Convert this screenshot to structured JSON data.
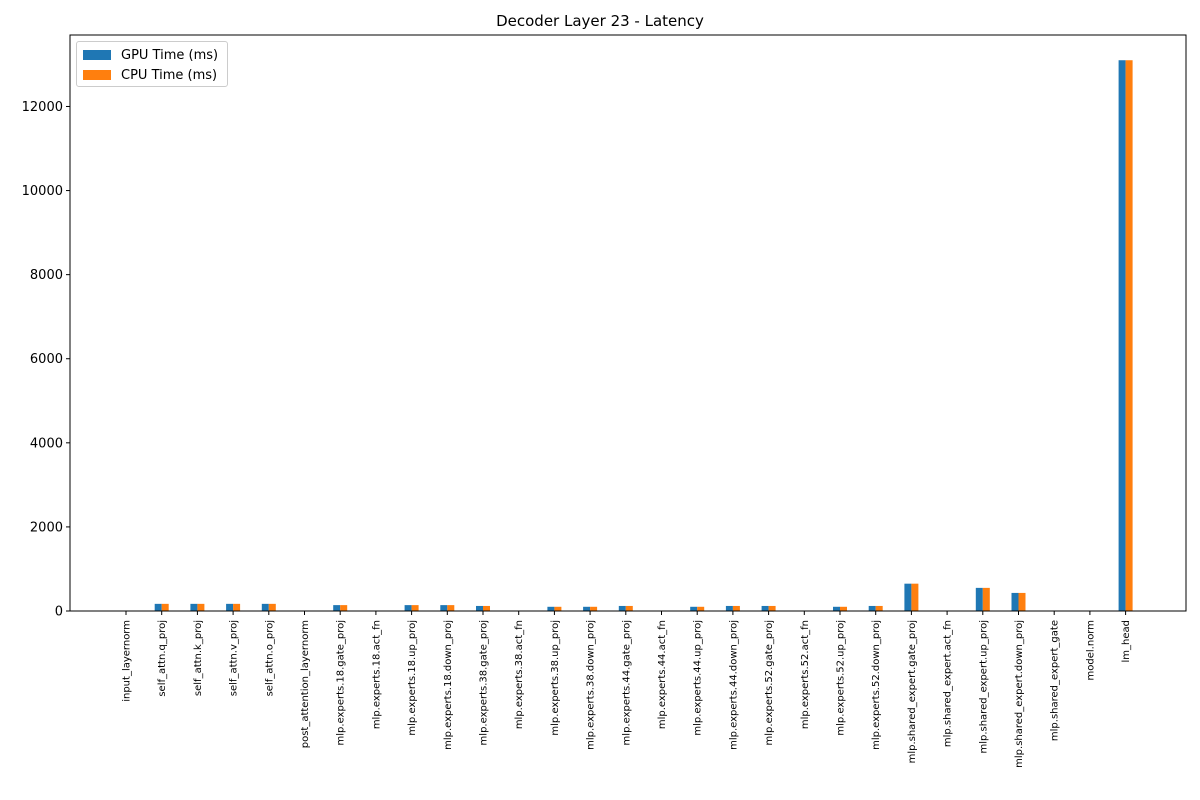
{
  "chart_data": {
    "type": "bar",
    "title": "Decoder Layer 23 - Latency",
    "xlabel": "",
    "ylabel": "",
    "ylim": [
      0,
      13700
    ],
    "yticks": [
      0,
      2000,
      4000,
      6000,
      8000,
      10000,
      12000
    ],
    "grid": false,
    "legend_position": "top-left",
    "categories": [
      "input_layernorm",
      "self_attn.q_proj",
      "self_attn.k_proj",
      "self_attn.v_proj",
      "self_attn.o_proj",
      "post_attention_layernorm",
      "mlp.experts.18.gate_proj",
      "mlp.experts.18.act_fn",
      "mlp.experts.18.up_proj",
      "mlp.experts.18.down_proj",
      "mlp.experts.38.gate_proj",
      "mlp.experts.38.act_fn",
      "mlp.experts.38.up_proj",
      "mlp.experts.38.down_proj",
      "mlp.experts.44.gate_proj",
      "mlp.experts.44.act_fn",
      "mlp.experts.44.up_proj",
      "mlp.experts.44.down_proj",
      "mlp.experts.52.gate_proj",
      "mlp.experts.52.act_fn",
      "mlp.experts.52.up_proj",
      "mlp.experts.52.down_proj",
      "mlp.shared_expert.gate_proj",
      "mlp.shared_expert.act_fn",
      "mlp.shared_expert.up_proj",
      "mlp.shared_expert.down_proj",
      "mlp.shared_expert_gate",
      "model.norm",
      "lm_head"
    ],
    "series": [
      {
        "name": "GPU Time (ms)",
        "color": "#1f77b4",
        "values": [
          8,
          170,
          170,
          170,
          170,
          8,
          140,
          5,
          140,
          140,
          120,
          5,
          100,
          100,
          120,
          5,
          100,
          120,
          120,
          5,
          100,
          120,
          650,
          5,
          550,
          430,
          10,
          8,
          13100
        ]
      },
      {
        "name": "CPU Time (ms)",
        "color": "#ff7f0e",
        "values": [
          8,
          170,
          170,
          170,
          170,
          8,
          140,
          5,
          140,
          140,
          120,
          5,
          100,
          100,
          120,
          5,
          100,
          120,
          120,
          5,
          100,
          120,
          650,
          5,
          550,
          430,
          10,
          8,
          13100
        ]
      }
    ]
  }
}
